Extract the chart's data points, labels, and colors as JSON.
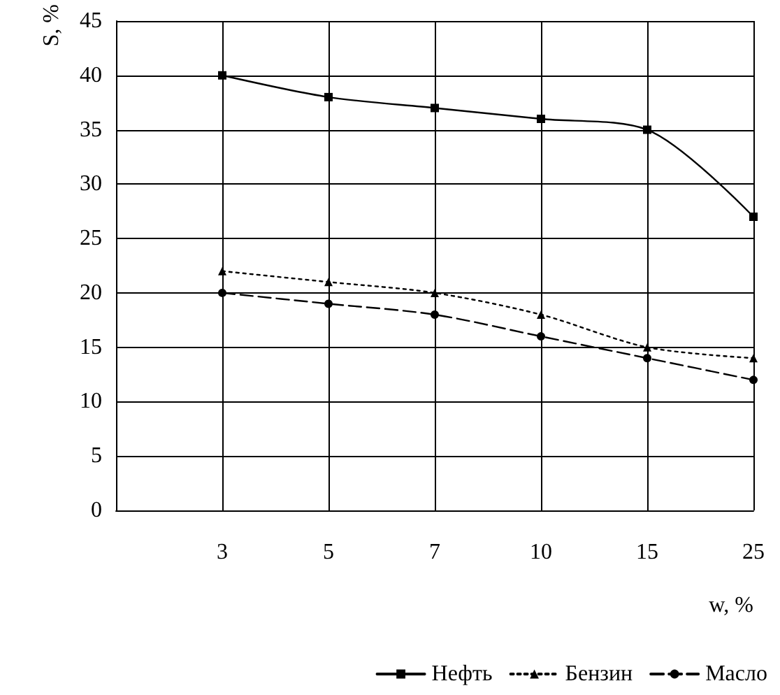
{
  "chart_data": {
    "type": "line",
    "xlabel": "w, %",
    "ylabel": "S, %",
    "categories": [
      null,
      "3",
      "5",
      "7",
      "10",
      "15",
      "25"
    ],
    "ylim": [
      0,
      45
    ],
    "yticks": [
      0,
      5,
      10,
      15,
      20,
      25,
      30,
      35,
      40,
      45
    ],
    "grid": true,
    "legend": "bottom",
    "series": [
      {
        "name": "Нефть",
        "color": "#000000",
        "marker": "square",
        "line_style": "solid",
        "values": [
          null,
          40,
          38,
          37,
          36,
          35,
          27
        ]
      },
      {
        "name": "Бензин",
        "color": "#000000",
        "marker": "triangle",
        "line_style": "dotted",
        "values": [
          null,
          22,
          21,
          20,
          18,
          15,
          14
        ]
      },
      {
        "name": "Масло",
        "color": "#000000",
        "marker": "circle",
        "line_style": "dashed",
        "values": [
          null,
          20,
          19,
          18,
          16,
          14,
          12
        ]
      }
    ]
  }
}
